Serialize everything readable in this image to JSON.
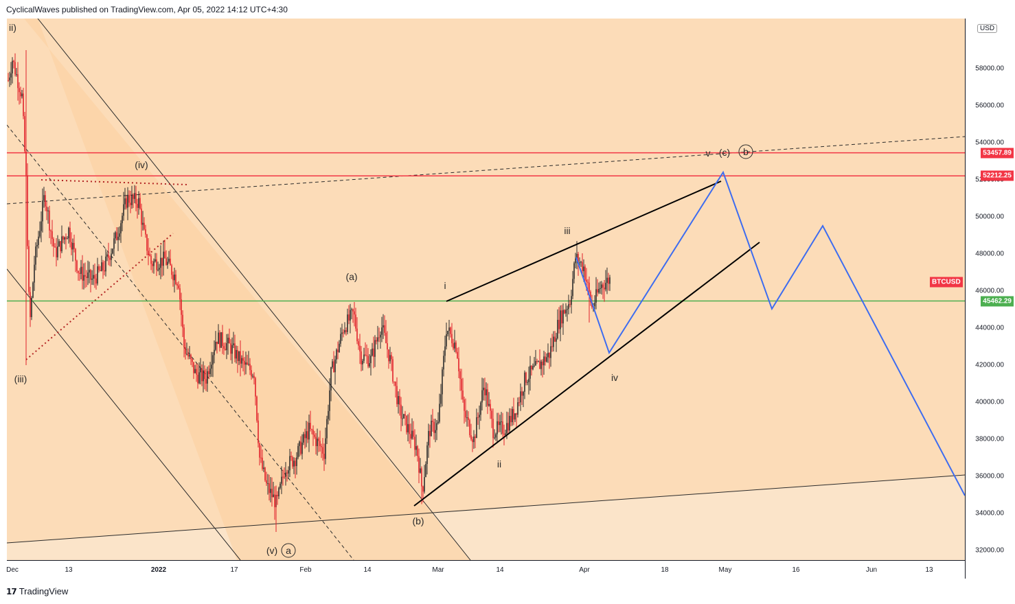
{
  "header": {
    "text": "CyclicalWaves published on TradingView.com, Apr 05, 2022 14:12 UTC+4:30"
  },
  "footer": {
    "brand": "TradingView"
  },
  "currency": "USD",
  "chart_data": {
    "type": "candlestick",
    "symbol": "BTCUSD",
    "ylim": [
      31500,
      61000
    ],
    "y_ticks": [
      "58000.00",
      "56000.00",
      "54000.00",
      "52000.00",
      "50000.00",
      "48000.00",
      "46000.00",
      "44000.00",
      "42000.00",
      "40000.00",
      "38000.00",
      "36000.00",
      "34000.00",
      "32000.00"
    ],
    "x_ticks": [
      "Dec",
      "13",
      "2022",
      "17",
      "Feb",
      "14",
      "Mar",
      "14",
      "Apr",
      "18",
      "May",
      "16",
      "Jun",
      "13"
    ],
    "price_levels": [
      {
        "label": "53457.89",
        "value": 53457.89,
        "color": "#f23645"
      },
      {
        "label": "52212.25",
        "value": 52212.25,
        "color": "#f23645"
      },
      {
        "label": "45462.29",
        "value": 45462.29,
        "color": "#4caf50"
      }
    ],
    "last_price_tag": {
      "label": "BTCUSD",
      "value": 46500,
      "color": "#f23645"
    },
    "price_anchors": [
      {
        "x": 0,
        "y": 57000
      },
      {
        "x": 8,
        "y": 58500
      },
      {
        "x": 22,
        "y": 56500
      },
      {
        "x": 28,
        "y": 52000
      },
      {
        "x": 33,
        "y": 44000
      },
      {
        "x": 40,
        "y": 47500
      },
      {
        "x": 55,
        "y": 51200
      },
      {
        "x": 70,
        "y": 48000
      },
      {
        "x": 90,
        "y": 49300
      },
      {
        "x": 105,
        "y": 47000
      },
      {
        "x": 125,
        "y": 46600
      },
      {
        "x": 142,
        "y": 47300
      },
      {
        "x": 160,
        "y": 49000
      },
      {
        "x": 175,
        "y": 51000
      },
      {
        "x": 192,
        "y": 50800
      },
      {
        "x": 200,
        "y": 49000
      },
      {
        "x": 210,
        "y": 47500
      },
      {
        "x": 230,
        "y": 47700
      },
      {
        "x": 250,
        "y": 46500
      },
      {
        "x": 258,
        "y": 43000
      },
      {
        "x": 275,
        "y": 41500
      },
      {
        "x": 290,
        "y": 41300
      },
      {
        "x": 305,
        "y": 43500
      },
      {
        "x": 325,
        "y": 43000
      },
      {
        "x": 345,
        "y": 42000
      },
      {
        "x": 360,
        "y": 41600
      },
      {
        "x": 368,
        "y": 37000
      },
      {
        "x": 378,
        "y": 35500
      },
      {
        "x": 393,
        "y": 34500
      },
      {
        "x": 405,
        "y": 36500
      },
      {
        "x": 420,
        "y": 37000
      },
      {
        "x": 440,
        "y": 38500
      },
      {
        "x": 462,
        "y": 37300
      },
      {
        "x": 472,
        "y": 41500
      },
      {
        "x": 490,
        "y": 44000
      },
      {
        "x": 505,
        "y": 44800
      },
      {
        "x": 515,
        "y": 42500
      },
      {
        "x": 530,
        "y": 42300
      },
      {
        "x": 545,
        "y": 44200
      },
      {
        "x": 558,
        "y": 42300
      },
      {
        "x": 572,
        "y": 39500
      },
      {
        "x": 585,
        "y": 38500
      },
      {
        "x": 597,
        "y": 37500
      },
      {
        "x": 605,
        "y": 35200
      },
      {
        "x": 615,
        "y": 38500
      },
      {
        "x": 628,
        "y": 38800
      },
      {
        "x": 640,
        "y": 44000
      },
      {
        "x": 655,
        "y": 43000
      },
      {
        "x": 665,
        "y": 39500
      },
      {
        "x": 680,
        "y": 38000
      },
      {
        "x": 695,
        "y": 41000
      },
      {
        "x": 708,
        "y": 38500
      },
      {
        "x": 725,
        "y": 38600
      },
      {
        "x": 740,
        "y": 39500
      },
      {
        "x": 755,
        "y": 41300
      },
      {
        "x": 770,
        "y": 41800
      },
      {
        "x": 790,
        "y": 42600
      },
      {
        "x": 805,
        "y": 44500
      },
      {
        "x": 820,
        "y": 45500
      },
      {
        "x": 828,
        "y": 47800
      },
      {
        "x": 840,
        "y": 47300
      },
      {
        "x": 852,
        "y": 45100
      },
      {
        "x": 865,
        "y": 46300
      },
      {
        "x": 880,
        "y": 46700
      }
    ],
    "wave_labels": [
      {
        "text": "ii)",
        "x": 3,
        "y": 18,
        "anchor": "start"
      },
      {
        "text": "(iii)",
        "x": 20,
        "y": 530,
        "anchor": "middle"
      },
      {
        "text": "(iv)",
        "x": 196,
        "y": 218,
        "anchor": "middle"
      },
      {
        "text": "(v)",
        "x": 386,
        "y": 780,
        "anchor": "middle"
      },
      {
        "text": "(a)",
        "x": 502,
        "y": 381,
        "anchor": "middle"
      },
      {
        "text": "(b)",
        "x": 599,
        "y": 737,
        "anchor": "middle"
      },
      {
        "text": "i",
        "x": 638,
        "y": 394,
        "anchor": "middle"
      },
      {
        "text": "ii",
        "x": 717,
        "y": 654,
        "anchor": "middle"
      },
      {
        "text": "iii",
        "x": 816,
        "y": 314,
        "anchor": "middle"
      },
      {
        "text": "iv",
        "x": 885,
        "y": 528,
        "anchor": "middle"
      },
      {
        "text": "v",
        "x": 1021,
        "y": 201,
        "anchor": "middle"
      },
      {
        "text": "(c)",
        "x": 1045,
        "y": 200,
        "anchor": "middle"
      }
    ],
    "circled_labels": [
      {
        "text": "a",
        "x": 410,
        "y": 780
      },
      {
        "text": "b",
        "x": 1076,
        "y": 199
      }
    ]
  }
}
